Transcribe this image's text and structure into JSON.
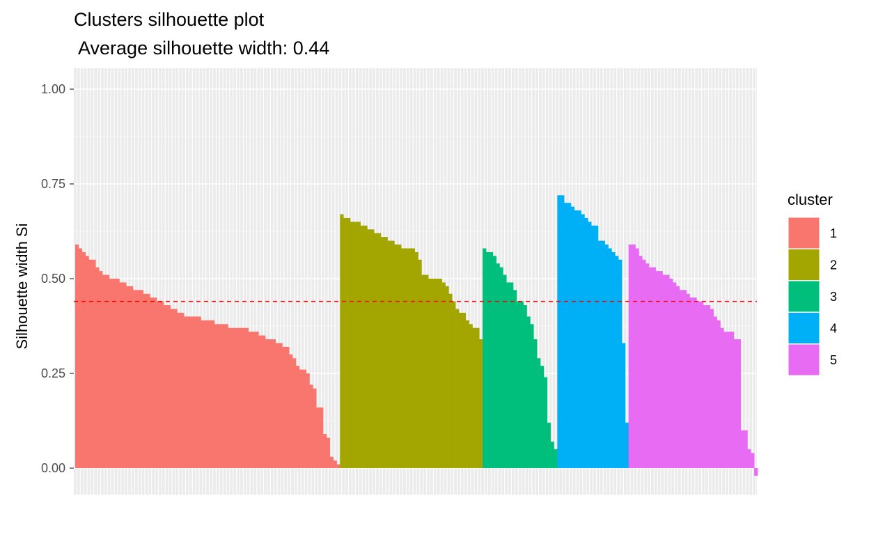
{
  "chart_data": {
    "type": "bar",
    "title": "Clusters silhouette plot",
    "subtitle": " Average silhouette width: 0.44",
    "xlabel": "",
    "ylabel": "Silhouette width Si",
    "ylim": [
      -0.07,
      1.05
    ],
    "yticks": [
      "0.00",
      "0.25",
      "0.50",
      "0.75",
      "1.00"
    ],
    "ytick_values": [
      0,
      0.25,
      0.5,
      0.75,
      1.0
    ],
    "grid": true,
    "average_width": 0.44,
    "average_line_color": "#ff0000",
    "legend": {
      "title": "cluster",
      "position": "right"
    },
    "series": [
      {
        "name": "1",
        "color": "#F8766D",
        "values": [
          0.59,
          0.58,
          0.57,
          0.56,
          0.55,
          0.55,
          0.53,
          0.52,
          0.51,
          0.51,
          0.5,
          0.5,
          0.5,
          0.49,
          0.49,
          0.48,
          0.48,
          0.47,
          0.47,
          0.47,
          0.46,
          0.46,
          0.45,
          0.45,
          0.44,
          0.44,
          0.43,
          0.43,
          0.42,
          0.42,
          0.41,
          0.41,
          0.4,
          0.4,
          0.4,
          0.4,
          0.4,
          0.39,
          0.39,
          0.39,
          0.39,
          0.38,
          0.38,
          0.38,
          0.38,
          0.37,
          0.37,
          0.37,
          0.37,
          0.37,
          0.37,
          0.36,
          0.36,
          0.36,
          0.35,
          0.35,
          0.34,
          0.34,
          0.34,
          0.33,
          0.33,
          0.32,
          0.32,
          0.3,
          0.29,
          0.27,
          0.26,
          0.26,
          0.25,
          0.22,
          0.21,
          0.16,
          0.16,
          0.09,
          0.08,
          0.03,
          0.02,
          0.01
        ]
      },
      {
        "name": "2",
        "color": "#A3A500",
        "values": [
          0.67,
          0.66,
          0.66,
          0.65,
          0.65,
          0.65,
          0.64,
          0.64,
          0.63,
          0.63,
          0.62,
          0.62,
          0.61,
          0.61,
          0.6,
          0.6,
          0.59,
          0.59,
          0.58,
          0.58,
          0.58,
          0.58,
          0.57,
          0.55,
          0.51,
          0.51,
          0.5,
          0.5,
          0.5,
          0.5,
          0.49,
          0.48,
          0.46,
          0.44,
          0.42,
          0.41,
          0.41,
          0.39,
          0.38,
          0.37,
          0.37,
          0.34
        ]
      },
      {
        "name": "3",
        "color": "#00BF7D",
        "values": [
          0.58,
          0.57,
          0.57,
          0.56,
          0.54,
          0.53,
          0.51,
          0.49,
          0.49,
          0.47,
          0.44,
          0.44,
          0.43,
          0.4,
          0.38,
          0.34,
          0.29,
          0.27,
          0.24,
          0.12,
          0.07,
          0.05
        ]
      },
      {
        "name": "4",
        "color": "#00B0F6",
        "values": [
          0.72,
          0.72,
          0.7,
          0.7,
          0.69,
          0.68,
          0.68,
          0.67,
          0.66,
          0.65,
          0.64,
          0.64,
          0.6,
          0.6,
          0.59,
          0.58,
          0.57,
          0.56,
          0.55,
          0.33,
          0.12
        ]
      },
      {
        "name": "5",
        "color": "#E76BF3",
        "values": [
          0.59,
          0.59,
          0.58,
          0.56,
          0.55,
          0.54,
          0.53,
          0.53,
          0.52,
          0.52,
          0.51,
          0.51,
          0.5,
          0.49,
          0.48,
          0.47,
          0.47,
          0.46,
          0.45,
          0.45,
          0.44,
          0.44,
          0.43,
          0.43,
          0.42,
          0.4,
          0.39,
          0.37,
          0.36,
          0.36,
          0.36,
          0.34,
          0.34,
          0.1,
          0.1,
          0.05,
          0.04,
          -0.02
        ]
      }
    ]
  }
}
